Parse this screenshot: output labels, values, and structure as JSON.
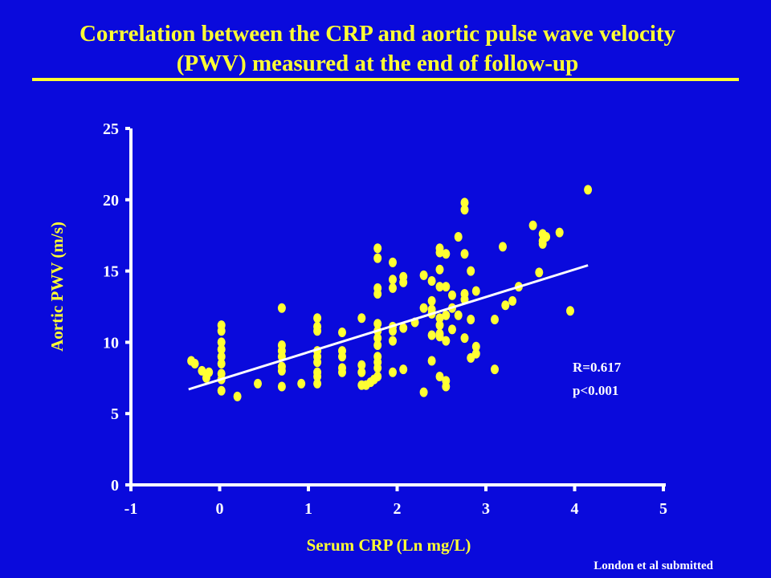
{
  "slide": {
    "title_line1": "Correlation between the CRP and aortic pulse wave velocity",
    "title_line2": "(PWV) measured at the end of follow-up",
    "credit": "London et al  submitted"
  },
  "colors": {
    "background": "#0a0adc",
    "accent_yellow": "#ffff33",
    "axis_white": "#ffffff"
  },
  "chart_data": {
    "type": "scatter",
    "xlabel": "Serum CRP (Ln mg/L)",
    "ylabel": "Aortic PWV (m/s)",
    "xlim": [
      -1,
      5
    ],
    "ylim": [
      0,
      25
    ],
    "xticks": [
      "-1",
      "0",
      "1",
      "2",
      "3",
      "4",
      "5"
    ],
    "yticks": [
      "0",
      "5",
      "10",
      "15",
      "20",
      "25"
    ],
    "annotations": [
      "R=0.617",
      "p<0.001"
    ],
    "regression_line": {
      "x": [
        -0.35,
        4.15
      ],
      "y": [
        6.7,
        15.4
      ]
    },
    "grid": false,
    "points": [
      [
        -0.32,
        8.7
      ],
      [
        -0.28,
        8.5
      ],
      [
        -0.2,
        8.0
      ],
      [
        -0.15,
        7.5
      ],
      [
        -0.12,
        7.9
      ],
      [
        0.02,
        11.2
      ],
      [
        0.02,
        10.8
      ],
      [
        0.02,
        10.0
      ],
      [
        0.02,
        9.5
      ],
      [
        0.02,
        9.0
      ],
      [
        0.02,
        8.5
      ],
      [
        0.02,
        7.8
      ],
      [
        0.02,
        7.4
      ],
      [
        0.02,
        6.6
      ],
      [
        0.2,
        6.2
      ],
      [
        0.43,
        7.1
      ],
      [
        0.7,
        12.4
      ],
      [
        0.7,
        9.8
      ],
      [
        0.7,
        9.4
      ],
      [
        0.7,
        9.0
      ],
      [
        0.7,
        8.3
      ],
      [
        0.7,
        8.0
      ],
      [
        0.7,
        6.9
      ],
      [
        0.92,
        7.1
      ],
      [
        1.1,
        11.7
      ],
      [
        1.1,
        11.1
      ],
      [
        1.1,
        10.8
      ],
      [
        1.1,
        9.4
      ],
      [
        1.1,
        9.0
      ],
      [
        1.1,
        8.6
      ],
      [
        1.1,
        7.9
      ],
      [
        1.1,
        7.6
      ],
      [
        1.1,
        7.1
      ],
      [
        1.38,
        10.7
      ],
      [
        1.38,
        9.4
      ],
      [
        1.38,
        9.0
      ],
      [
        1.38,
        8.2
      ],
      [
        1.38,
        7.9
      ],
      [
        1.6,
        11.7
      ],
      [
        1.6,
        8.4
      ],
      [
        1.6,
        7.9
      ],
      [
        1.6,
        7.0
      ],
      [
        1.65,
        7.0
      ],
      [
        1.7,
        7.2
      ],
      [
        1.74,
        7.4
      ],
      [
        1.78,
        16.6
      ],
      [
        1.78,
        15.9
      ],
      [
        1.78,
        13.8
      ],
      [
        1.78,
        13.4
      ],
      [
        1.78,
        11.3
      ],
      [
        1.78,
        10.8
      ],
      [
        1.78,
        10.3
      ],
      [
        1.78,
        9.8
      ],
      [
        1.78,
        9.0
      ],
      [
        1.78,
        8.6
      ],
      [
        1.78,
        8.2
      ],
      [
        1.78,
        7.6
      ],
      [
        1.95,
        15.6
      ],
      [
        1.95,
        14.4
      ],
      [
        1.95,
        13.8
      ],
      [
        1.95,
        11.1
      ],
      [
        1.95,
        10.8
      ],
      [
        1.95,
        10.1
      ],
      [
        1.95,
        7.9
      ],
      [
        2.07,
        14.6
      ],
      [
        2.07,
        14.2
      ],
      [
        2.07,
        11.0
      ],
      [
        2.07,
        8.1
      ],
      [
        2.2,
        11.4
      ],
      [
        2.3,
        14.7
      ],
      [
        2.3,
        12.4
      ],
      [
        2.3,
        6.5
      ],
      [
        2.39,
        14.3
      ],
      [
        2.39,
        12.9
      ],
      [
        2.39,
        12.3
      ],
      [
        2.39,
        12.0
      ],
      [
        2.39,
        10.5
      ],
      [
        2.39,
        8.7
      ],
      [
        2.48,
        16.6
      ],
      [
        2.48,
        16.3
      ],
      [
        2.48,
        15.1
      ],
      [
        2.48,
        13.9
      ],
      [
        2.48,
        11.7
      ],
      [
        2.48,
        11.2
      ],
      [
        2.48,
        10.6
      ],
      [
        2.48,
        10.4
      ],
      [
        2.48,
        7.6
      ],
      [
        2.55,
        16.2
      ],
      [
        2.55,
        13.9
      ],
      [
        2.55,
        11.9
      ],
      [
        2.55,
        10.1
      ],
      [
        2.55,
        7.3
      ],
      [
        2.55,
        6.9
      ],
      [
        2.62,
        13.3
      ],
      [
        2.62,
        12.4
      ],
      [
        2.62,
        10.9
      ],
      [
        2.69,
        17.4
      ],
      [
        2.69,
        11.9
      ],
      [
        2.76,
        19.8
      ],
      [
        2.76,
        19.3
      ],
      [
        2.76,
        16.2
      ],
      [
        2.76,
        13.4
      ],
      [
        2.76,
        13.0
      ],
      [
        2.76,
        10.3
      ],
      [
        2.83,
        15.0
      ],
      [
        2.83,
        11.6
      ],
      [
        2.83,
        8.9
      ],
      [
        2.89,
        13.6
      ],
      [
        2.89,
        9.7
      ],
      [
        2.89,
        9.2
      ],
      [
        3.1,
        11.6
      ],
      [
        3.1,
        8.1
      ],
      [
        3.19,
        16.7
      ],
      [
        3.22,
        12.6
      ],
      [
        3.3,
        12.9
      ],
      [
        3.37,
        13.9
      ],
      [
        3.53,
        18.2
      ],
      [
        3.6,
        14.9
      ],
      [
        3.64,
        17.6
      ],
      [
        3.64,
        17.1
      ],
      [
        3.64,
        16.9
      ],
      [
        3.68,
        17.4
      ],
      [
        3.83,
        17.7
      ],
      [
        3.95,
        12.2
      ],
      [
        4.15,
        20.7
      ]
    ]
  }
}
